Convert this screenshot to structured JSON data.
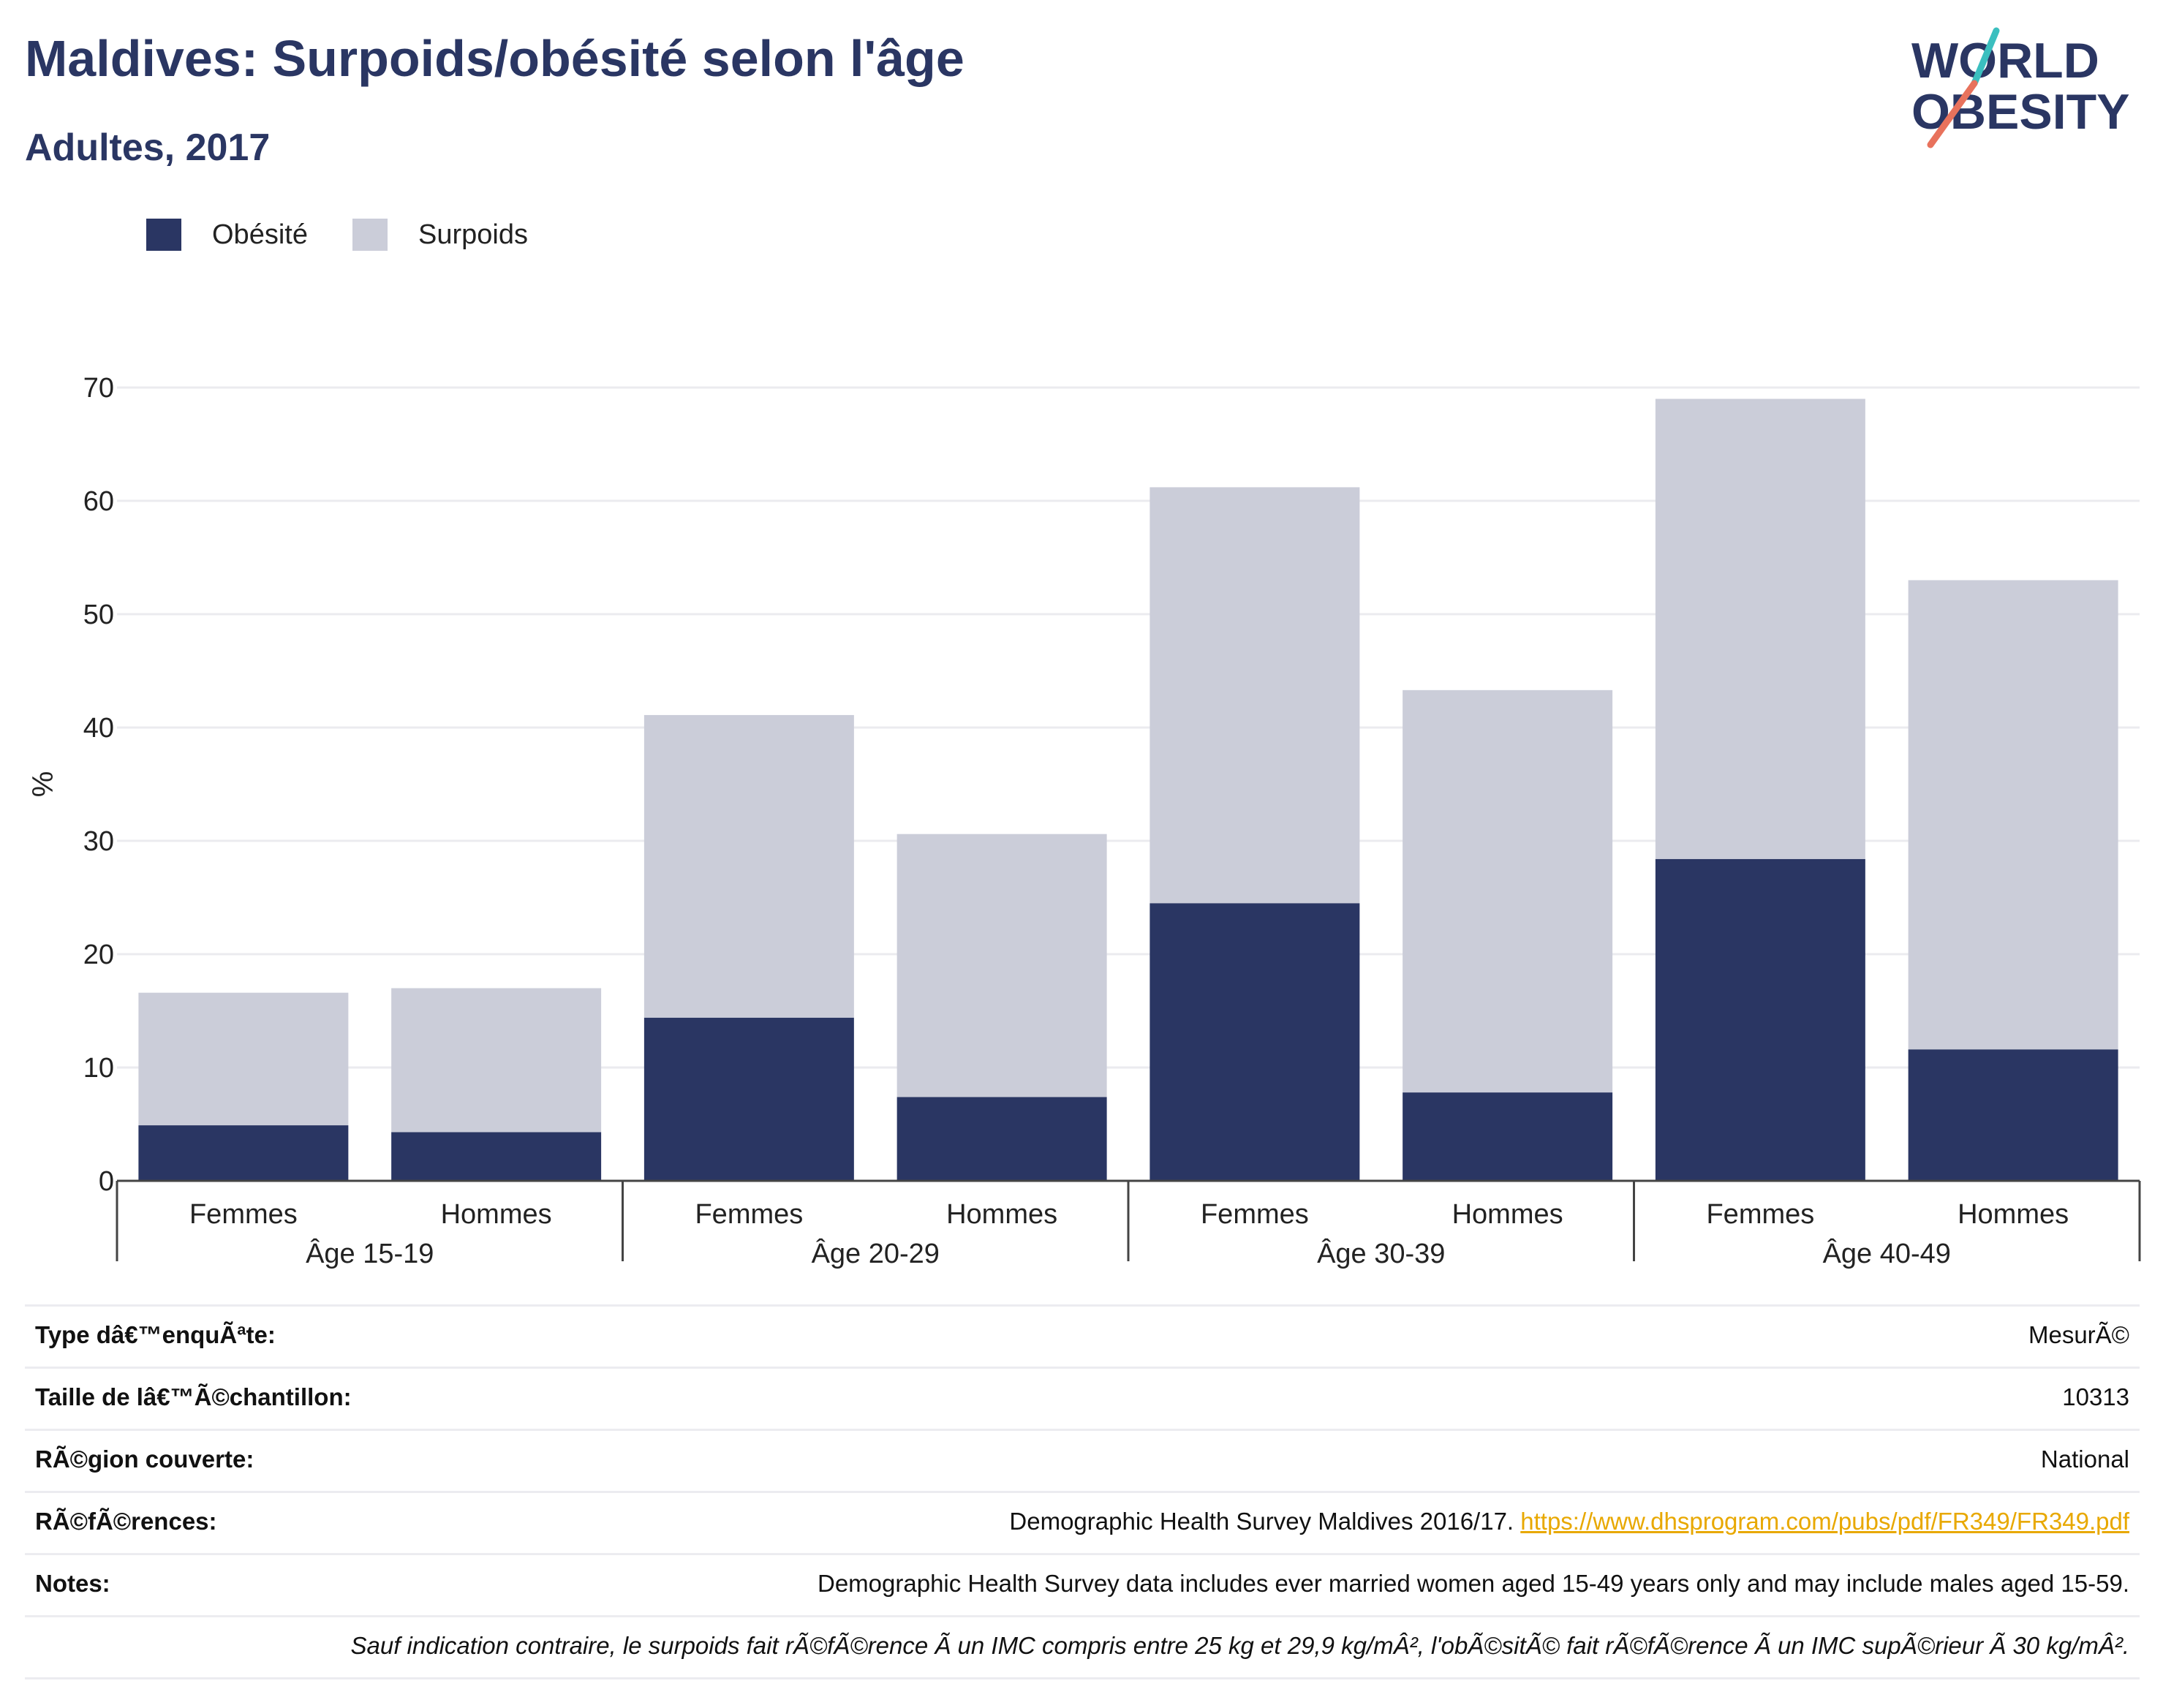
{
  "header": {
    "title": "Maldives: Surpoids/obésité selon l'âge",
    "subtitle": "Adultes, 2017"
  },
  "logo": {
    "line1": "WORLD",
    "line2": "OBESITY",
    "colors": {
      "text": "#2a3663",
      "accent_top": "#3bbfbf",
      "accent_bottom": "#e8725c"
    }
  },
  "legend": [
    {
      "label": "Obésité",
      "color": "#2a3663"
    },
    {
      "label": "Surpoids",
      "color": "#cbcdd9"
    }
  ],
  "chart_data": {
    "type": "bar",
    "stacked": true,
    "ylabel": "%",
    "xlabel": "",
    "ylim": [
      0,
      70
    ],
    "yticks": [
      0,
      10,
      20,
      30,
      40,
      50,
      60,
      70
    ],
    "grid": true,
    "legend_position": "top-left",
    "groups": [
      {
        "label": "Âge 15-19",
        "categories": [
          "Femmes",
          "Hommes"
        ]
      },
      {
        "label": "Âge 20-29",
        "categories": [
          "Femmes",
          "Hommes"
        ]
      },
      {
        "label": "Âge 30-39",
        "categories": [
          "Femmes",
          "Hommes"
        ]
      },
      {
        "label": "Âge 40-49",
        "categories": [
          "Femmes",
          "Hommes"
        ]
      }
    ],
    "series": [
      {
        "name": "Obésité",
        "color": "#2a3663",
        "values": [
          4.9,
          4.3,
          14.4,
          7.4,
          24.5,
          7.8,
          28.4,
          11.6
        ]
      },
      {
        "name": "Surpoids",
        "color": "#cbcdd9",
        "values": [
          11.7,
          12.7,
          26.7,
          23.2,
          36.7,
          35.5,
          40.6,
          41.4
        ]
      }
    ],
    "totals": [
      16.6,
      17.0,
      41.1,
      30.6,
      61.2,
      43.3,
      69.0,
      53.0
    ]
  },
  "info": {
    "rows": [
      {
        "key": "Type dâ€™enquÃªte:",
        "value": "MesurÃ©"
      },
      {
        "key": "Taille de lâ€™Ã©chantillon:",
        "value": "10313"
      },
      {
        "key": "RÃ©gion couverte:",
        "value": "National"
      },
      {
        "key": "RÃ©fÃ©rences:",
        "value": "Demographic Health Survey Maldives 2016/17.",
        "link": "https://www.dhsprogram.com/pubs/pdf/FR349/FR349.pdf"
      },
      {
        "key": "Notes:",
        "value": "Demographic Health Survey data includes ever married women aged 15-49 years only and may include males aged 15-59."
      }
    ],
    "footnote": "Sauf indication contraire, le surpoids fait rÃ©fÃ©rence Ã  un IMC compris entre 25 kg et 29,9 kg/mÂ², l'obÃ©sitÃ© fait rÃ©fÃ©rence Ã  un IMC supÃ©rieur Ã  30 kg/mÂ²."
  }
}
